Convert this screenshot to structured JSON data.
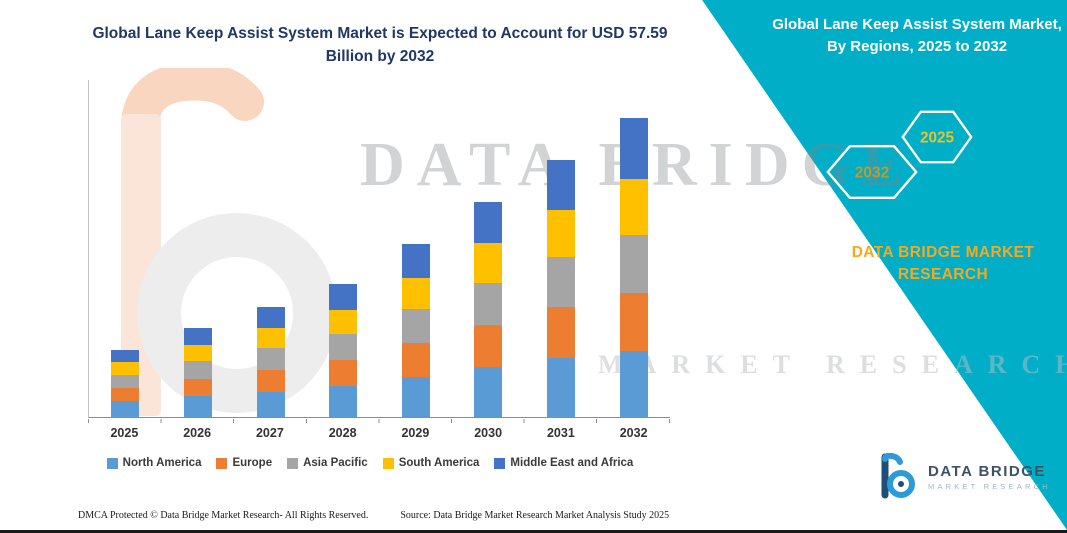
{
  "main": {
    "title": "Global Lane Keep Assist System Market is Expected to Account for USD 57.59 Billion by 2032",
    "title_color": "#1F3864"
  },
  "panel": {
    "background": "#00AFC7",
    "title": "Global Lane Keep Assist System Market, By Regions, 2025 to 2032",
    "hexagons": [
      {
        "label": "2032",
        "color": "#BE9A30"
      },
      {
        "label": "2025",
        "color": "#E2C62B"
      }
    ],
    "brand": "DATA BRIDGE MARKET RESEARCH",
    "brand_color": "#F7A81B"
  },
  "watermark": {
    "line1": "DATA BRIDGE",
    "line2": "MARKET RESEARCH"
  },
  "chart_data": {
    "type": "stacked-bar",
    "title": "Global Lane Keep Assist System Market is Expected to Account for USD 57.59 Billion by 2032",
    "categories": [
      "2025",
      "2026",
      "2027",
      "2028",
      "2029",
      "2030",
      "2031",
      "2032"
    ],
    "series": [
      {
        "name": "North America",
        "color": "#5B9BD5",
        "values": [
          3.0,
          4.0,
          4.9,
          5.9,
          7.7,
          9.6,
          11.4,
          12.8
        ]
      },
      {
        "name": "Europe",
        "color": "#ED7D31",
        "values": [
          2.6,
          3.4,
          4.2,
          5.1,
          6.6,
          8.2,
          9.8,
          11.2
        ]
      },
      {
        "name": "Asia Pacific",
        "color": "#A5A5A5",
        "values": [
          2.6,
          3.4,
          4.2,
          5.0,
          6.5,
          8.1,
          9.7,
          11.2
        ]
      },
      {
        "name": "South America",
        "color": "#FFC000",
        "values": [
          2.4,
          3.1,
          3.9,
          4.7,
          6.1,
          7.6,
          9.0,
          10.8
        ]
      },
      {
        "name": "Middle East and Africa",
        "color": "#4472C4",
        "values": [
          2.4,
          3.2,
          4.0,
          4.9,
          6.4,
          8.0,
          9.6,
          11.6
        ]
      }
    ],
    "ylim": [
      0,
      65
    ],
    "grid": false,
    "legend_position": "bottom"
  },
  "footer": {
    "left": "DMCA Protected © Data Bridge Market Research-  All Rights Reserved.",
    "right": "Source: Data Bridge Market Research  Market Analysis Study 2025"
  },
  "logo": {
    "name": "DATA BRIDGE",
    "sub": "MARKET RESEARCH"
  }
}
